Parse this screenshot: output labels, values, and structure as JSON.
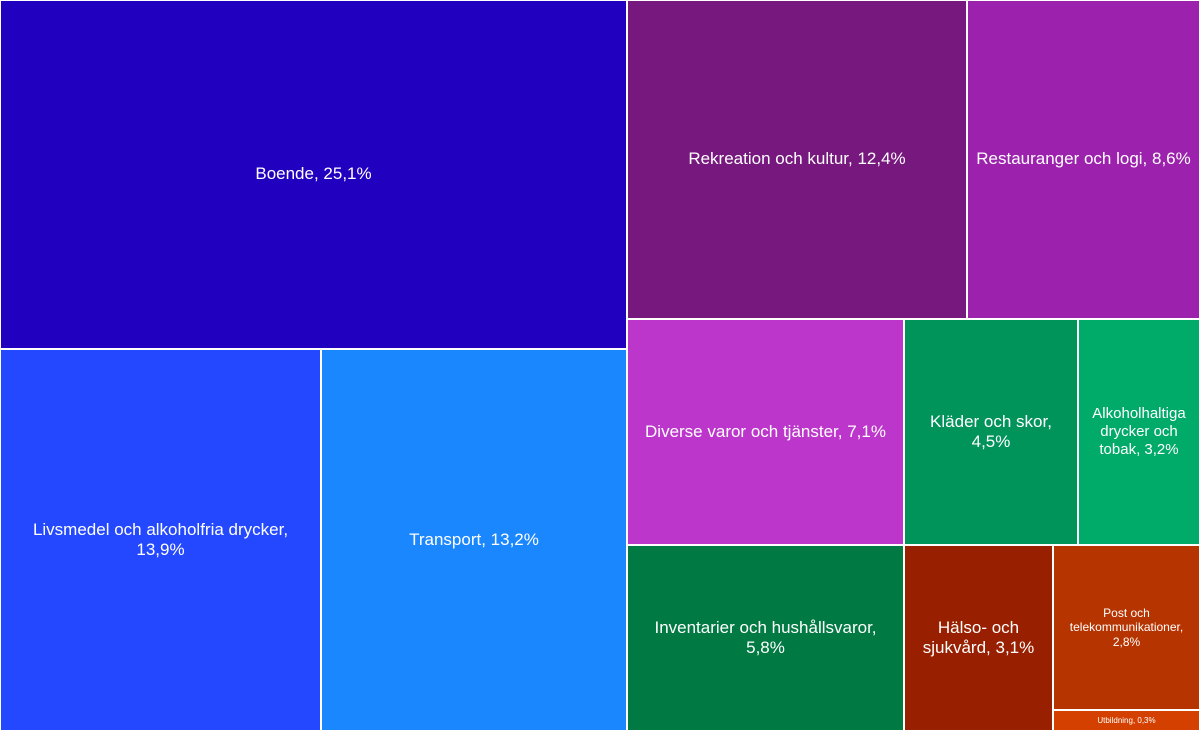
{
  "chart_data": {
    "type": "treemap",
    "items": [
      {
        "label": "Boende, 25,1%",
        "value": 25.1,
        "color": "#2200c0"
      },
      {
        "label": "Livsmedel och alkoholfria drycker, 13,9%",
        "value": 13.9,
        "color": "#2348ff"
      },
      {
        "label": "Transport, 13,2%",
        "value": 13.2,
        "color": "#1a87ff"
      },
      {
        "label": "Rekreation och kultur, 12,4%",
        "value": 12.4,
        "color": "#77187f"
      },
      {
        "label": "Restauranger och logi, 8,6%",
        "value": 8.6,
        "color": "#9c22ae"
      },
      {
        "label": "Diverse varor och tjänster, 7,1%",
        "value": 7.1,
        "color": "#bc36cb"
      },
      {
        "label": "Kläder och skor, 4,5%",
        "value": 4.5,
        "color": "#00935a"
      },
      {
        "label": "Alkoholhaltiga drycker och tobak, 3,2%",
        "value": 3.2,
        "color": "#00aa68"
      },
      {
        "label": "Inventarier och hushållsvaror, 5,8%",
        "value": 5.8,
        "color": "#007a42"
      },
      {
        "label": "Hälso- och sjukvård, 3,1%",
        "value": 3.1,
        "color": "#982000"
      },
      {
        "label": "Post och telekommunikationer, 2,8%",
        "value": 2.8,
        "color": "#b63400"
      },
      {
        "label": "Utbildning, 0,3%",
        "value": 0.3,
        "color": "#d44000"
      }
    ]
  }
}
